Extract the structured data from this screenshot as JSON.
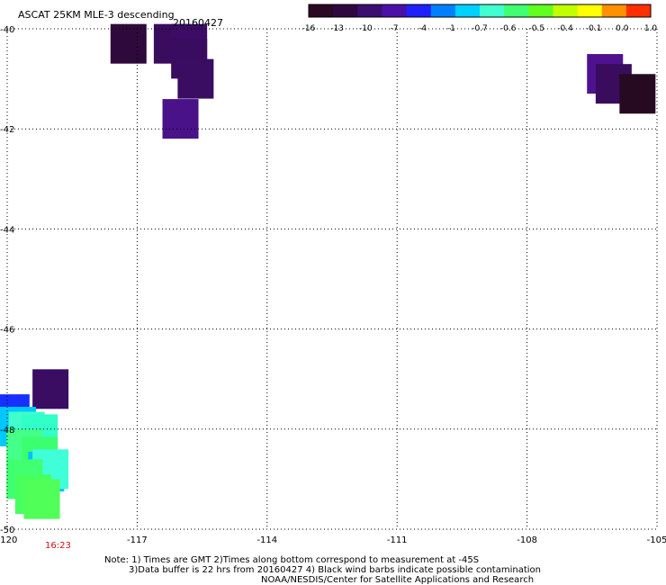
{
  "title": "ASCAT 25KM MLE-3 descending",
  "date": "20160427",
  "colorbar": {
    "tick_labels": [
      "-16",
      "-13",
      "-10",
      "-7",
      "-4",
      "-1",
      "-0.7",
      "-0.6",
      "-0.5",
      "-0.4",
      "-0.1",
      "0.0",
      "1.0"
    ],
    "colors": [
      "#2a0a22",
      "#300840",
      "#3a0f70",
      "#4a10a8",
      "#2020ff",
      "#0080ff",
      "#00d0ff",
      "#40ffd0",
      "#40ff70",
      "#60ff20",
      "#c0ff00",
      "#ffff00",
      "#ff9000",
      "#ff3000"
    ]
  },
  "lon_labels": [
    "-120",
    "-117",
    "-114",
    "-111",
    "-108",
    "-105"
  ],
  "lat_labels": [
    "-40",
    "-42",
    "-44",
    "-46",
    "-48",
    "-50"
  ],
  "time_label": "16:23",
  "notes": [
    "Note: 1) Times are GMT 2)Times along bottom correspond to measurement at -45S",
    "3)Data buffer is 22 hrs from 20160427 4) Black wind barbs indicate possible contamination",
    "NOAA/NESDIS/Center for Satellite Applications and Research"
  ],
  "map": {
    "lon_range": [
      -120,
      -105
    ],
    "lat_range": [
      -40,
      -50
    ],
    "grid": true,
    "cells": [
      {
        "lon": -117.2,
        "lat": -40.3,
        "color": "#2e0a3c"
      },
      {
        "lon": -116.2,
        "lat": -40.3,
        "color": "#3a0c5e"
      },
      {
        "lon": -115.8,
        "lat": -40.3,
        "color": "#3c0c66"
      },
      {
        "lon": -115.8,
        "lat": -40.6,
        "color": "#3a0c60"
      },
      {
        "lon": -115.65,
        "lat": -41.0,
        "color": "#3a0c62"
      },
      {
        "lon": -116.0,
        "lat": -41.8,
        "color": "#4a1288"
      },
      {
        "lon": -106.2,
        "lat": -40.9,
        "color": "#4e1290"
      },
      {
        "lon": -106.0,
        "lat": -41.1,
        "color": "#3a0c5e"
      },
      {
        "lon": -105.45,
        "lat": -41.3,
        "color": "#260a22"
      },
      {
        "lon": -119.0,
        "lat": -47.2,
        "color": "#3a0c62"
      },
      {
        "lon": -119.9,
        "lat": -47.7,
        "color": "#1830ff"
      },
      {
        "lon": -119.75,
        "lat": -47.95,
        "color": "#00c8ff"
      },
      {
        "lon": -119.55,
        "lat": -48.05,
        "color": "#40ffcc"
      },
      {
        "lon": -119.25,
        "lat": -48.1,
        "color": "#30ffc8"
      },
      {
        "lon": -119.6,
        "lat": -48.4,
        "color": "#44ff88"
      },
      {
        "lon": -119.25,
        "lat": -48.55,
        "color": "#3cff70"
      },
      {
        "lon": -119.1,
        "lat": -48.85,
        "color": "#00c0ff"
      },
      {
        "lon": -119.0,
        "lat": -48.8,
        "color": "#40ffd8"
      },
      {
        "lon": -119.6,
        "lat": -49.0,
        "color": "#40ff70"
      },
      {
        "lon": -119.4,
        "lat": -49.3,
        "color": "#48ff60"
      },
      {
        "lon": -119.2,
        "lat": -49.4,
        "color": "#50ff58"
      }
    ]
  }
}
